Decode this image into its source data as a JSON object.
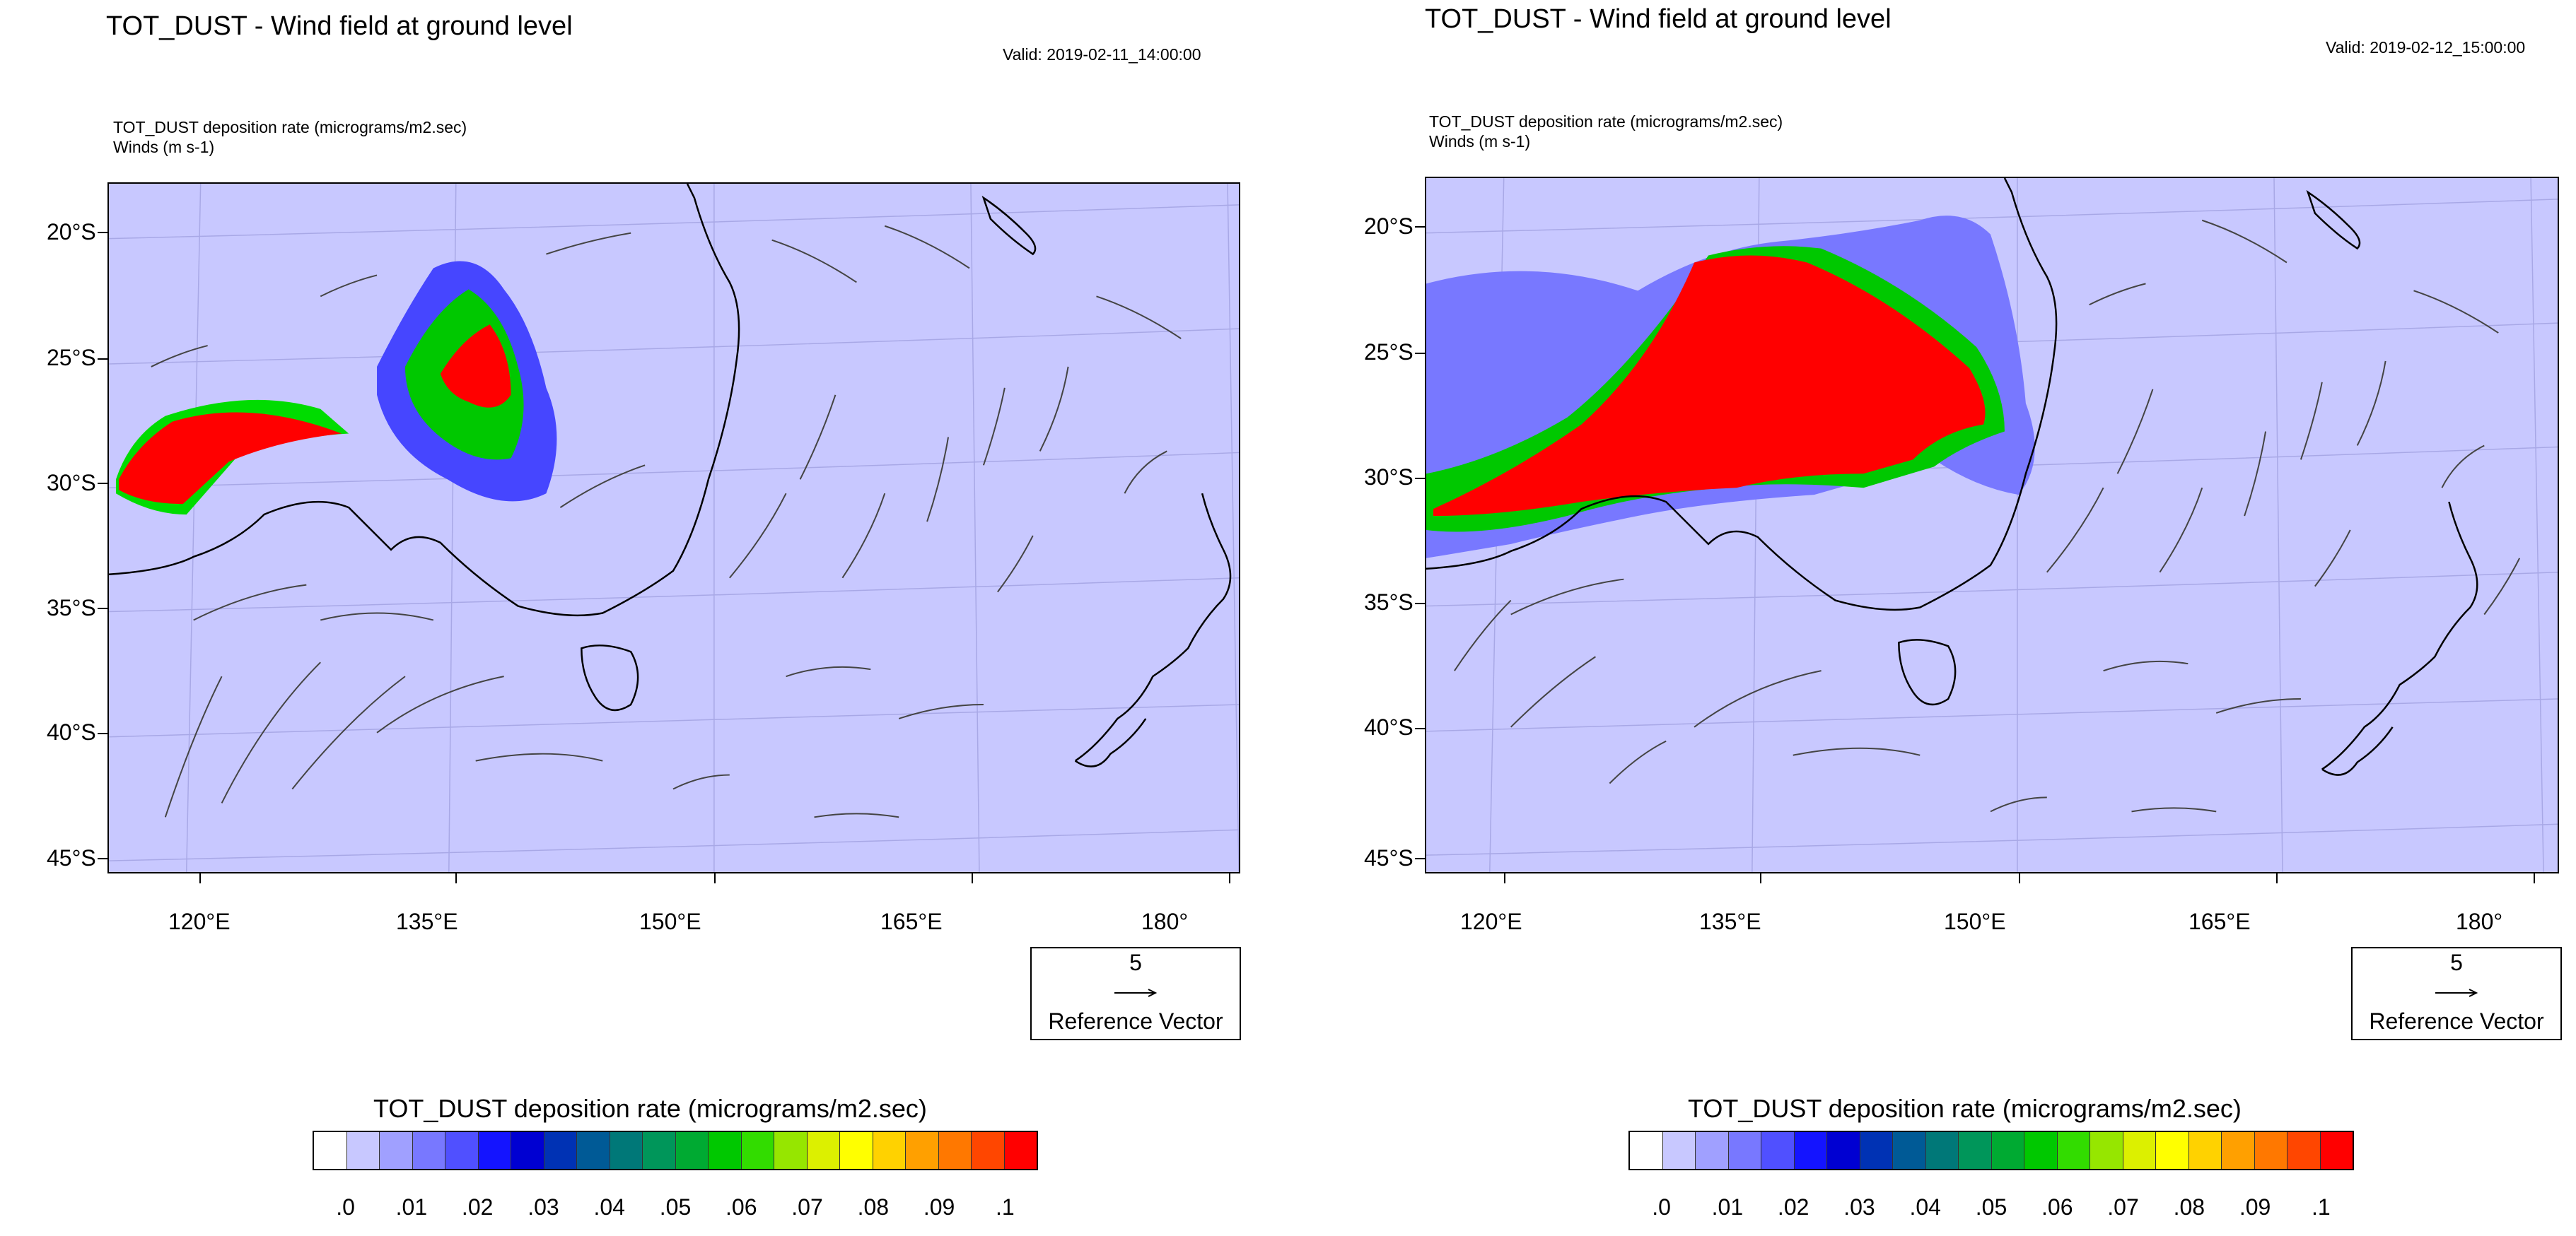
{
  "panels": [
    {
      "title": "TOT_DUST - Wind field at ground level",
      "valid": "Valid: 2019-02-11_14:00:00",
      "field_label": "TOT_DUST deposition rate   (micrograms/m2.sec)",
      "wind_label": "Winds   (m s-1)"
    },
    {
      "title": "TOT_DUST - Wind field at ground level",
      "valid": "Valid: 2019-02-12_15:00:00",
      "field_label": "TOT_DUST deposition rate   (micrograms/m2.sec)",
      "wind_label": "Winds   (m s-1)"
    }
  ],
  "axes": {
    "lat_labels": [
      "20°S",
      "25°S",
      "30°S",
      "35°S",
      "40°S",
      "45°S"
    ],
    "lon_labels": [
      "120°E",
      "135°E",
      "150°E",
      "165°E",
      "180°"
    ]
  },
  "reference_vector": {
    "magnitude": "5",
    "label": "Reference Vector"
  },
  "colorbar": {
    "title": "TOT_DUST deposition rate  (micrograms/m2.sec)",
    "labels": [
      ".0",
      ".01",
      ".02",
      ".03",
      ".04",
      ".05",
      ".06",
      ".07",
      ".08",
      ".09",
      ".1"
    ],
    "colors": [
      "#ffffff",
      "#c8c8ff",
      "#a0a0ff",
      "#7878ff",
      "#5050ff",
      "#1414ff",
      "#0000d2",
      "#0032b4",
      "#005a96",
      "#007878",
      "#00965a",
      "#00aa32",
      "#00c800",
      "#32dc00",
      "#96e600",
      "#dcf000",
      "#ffff00",
      "#ffd200",
      "#ffa000",
      "#ff7800",
      "#ff4600",
      "#ff0000"
    ]
  }
}
